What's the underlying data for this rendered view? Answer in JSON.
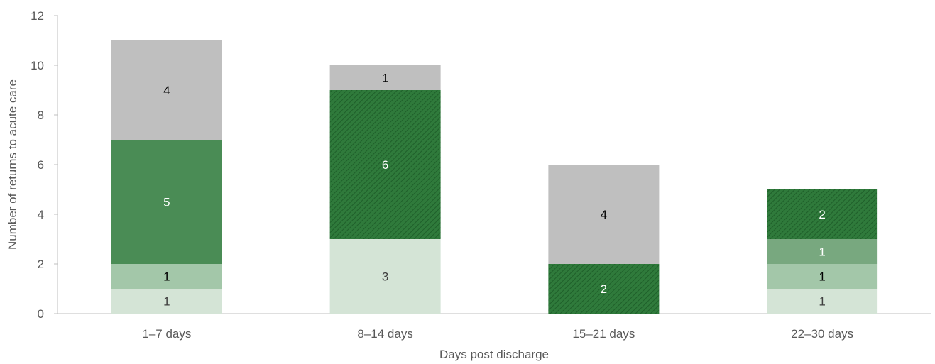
{
  "chart_data": {
    "type": "bar",
    "stacked": true,
    "title": "",
    "xlabel": "Days post discharge",
    "ylabel": "Number of returns to acute care",
    "ylim": [
      0,
      12
    ],
    "yticks": [
      "0",
      "2",
      "4",
      "6",
      "8",
      "10",
      "12"
    ],
    "categories": [
      "1–7 days",
      "8–14 days",
      "15–21 days",
      "22–30 days"
    ],
    "grid": false,
    "legend": "none",
    "series": [
      {
        "values": [
          1,
          3,
          0,
          1
        ],
        "color": "#d4e4d6",
        "pattern": "solid",
        "label_color": "#404040"
      },
      {
        "values": [
          1,
          0,
          0,
          1
        ],
        "color": "#a3c7a9",
        "pattern": "solid",
        "label_color": "#000000"
      },
      {
        "values": [
          0,
          0,
          0,
          1
        ],
        "color": "#78a87f",
        "pattern": "solid",
        "label_color": "#ffffff"
      },
      {
        "values": [
          5,
          0,
          0,
          0
        ],
        "color": "#4a8c55",
        "pattern": "solid",
        "label_color": "#ffffff"
      },
      {
        "values": [
          0,
          6,
          2,
          2
        ],
        "color": "#2f7a3b",
        "pattern": "hatched",
        "label_color": "#ffffff"
      },
      {
        "values": [
          4,
          1,
          4,
          0
        ],
        "color": "#bfbfbf",
        "pattern": "solid",
        "label_color": "#000000"
      }
    ]
  }
}
